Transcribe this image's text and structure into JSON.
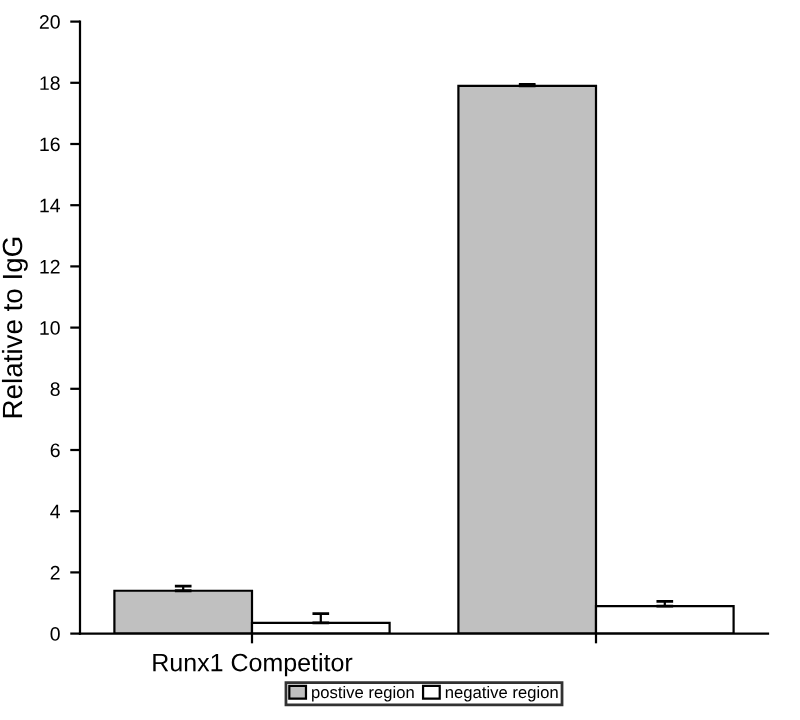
{
  "chart_data": {
    "type": "bar",
    "ylabel": "Relative to IgG",
    "categories": [
      "Runx1 Competitor",
      null
    ],
    "series": [
      {
        "name": "postive region",
        "color": "#c0c0c0",
        "values": [
          1.4,
          17.9
        ],
        "errors": [
          [
            1.4,
            1.55
          ],
          [
            17.9,
            17.95
          ]
        ]
      },
      {
        "name": "negative region",
        "color": "#ffffff",
        "values": [
          0.35,
          0.9
        ],
        "errors": [
          [
            0.35,
            0.65
          ],
          [
            0.9,
            1.05
          ]
        ]
      }
    ],
    "ylim": [
      0,
      20
    ],
    "yticks": [
      0,
      2,
      4,
      6,
      8,
      10,
      12,
      14,
      16,
      18,
      20
    ],
    "grid": false,
    "legend": "bottom"
  }
}
